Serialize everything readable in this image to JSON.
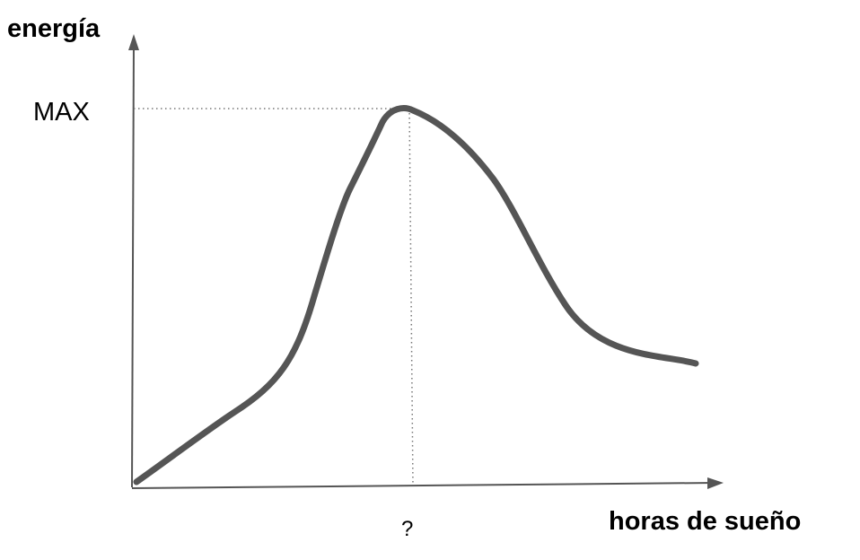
{
  "chart_data": {
    "type": "line",
    "ylabel": "energía",
    "xlabel": "horas de sueño",
    "y_tick_label": "MAX",
    "x_tick_label": "?",
    "axis_color": "#555555",
    "line_color": "#555555",
    "guide_color": "#777777",
    "grid": false,
    "legend": "none"
  }
}
